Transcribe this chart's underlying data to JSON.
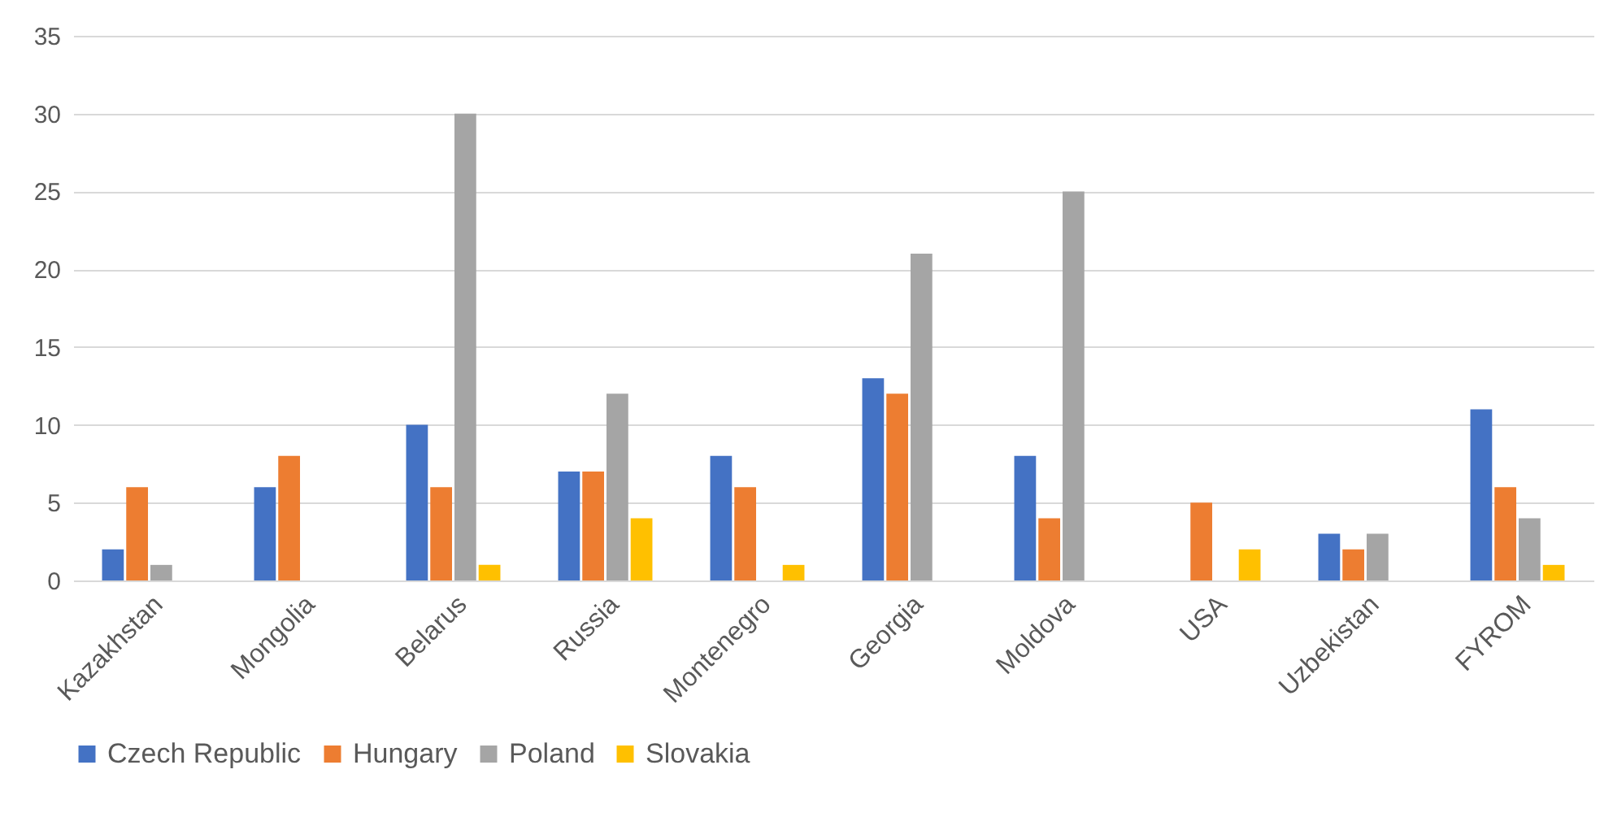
{
  "chart_data": {
    "type": "bar",
    "categories": [
      "Kazakhstan",
      "Mongolia",
      "Belarus",
      "Russia",
      "Montenegro",
      "Georgia",
      "Moldova",
      "USA",
      "Uzbekistan",
      "FYROM"
    ],
    "series": [
      {
        "name": "Czech Republic",
        "color": "#4472c4",
        "values": [
          2,
          6,
          10,
          7,
          8,
          13,
          8,
          null,
          3,
          11
        ]
      },
      {
        "name": "Hungary",
        "color": "#ed7d31",
        "values": [
          6,
          8,
          6,
          7,
          6,
          12,
          4,
          5,
          2,
          6
        ]
      },
      {
        "name": "Poland",
        "color": "#a5a5a5",
        "values": [
          1,
          null,
          30,
          12,
          null,
          21,
          25,
          null,
          3,
          4
        ]
      },
      {
        "name": "Slovakia",
        "color": "#ffc000",
        "values": [
          null,
          null,
          1,
          4,
          1,
          null,
          null,
          2,
          null,
          1
        ]
      }
    ],
    "ylim": [
      0,
      35
    ],
    "yticks": [
      0,
      5,
      10,
      15,
      20,
      25,
      30,
      35
    ],
    "grid": "y",
    "legend": "bottom"
  }
}
